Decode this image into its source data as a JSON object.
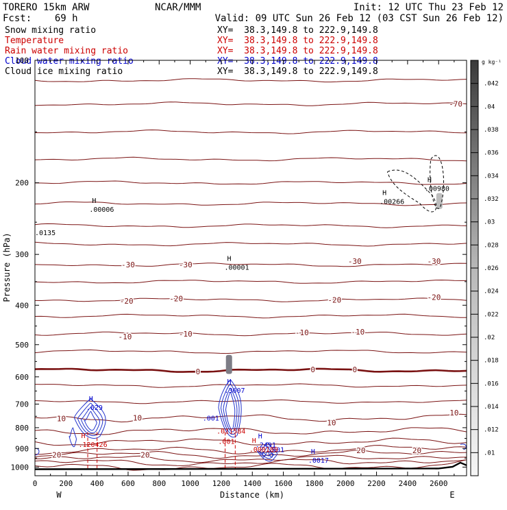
{
  "header": {
    "model": "TORERO  15km ARW",
    "center": "NCAR/MMM",
    "init": "Init: 12 UTC Thu 23 Feb 12",
    "fcst": "Fcst:    69 h",
    "valid": "Valid: 09 UTC Sun 26 Feb 12 (03 CST Sun 26 Feb 12)"
  },
  "fields": [
    {
      "label": "Snow mixing ratio",
      "xy": "XY=  38.3,149.8 to 222.9,149.8",
      "color": "#000000"
    },
    {
      "label": "Temperature",
      "xy": "XY=  38.3,149.8 to 222.9,149.8",
      "color": "#cc0000"
    },
    {
      "label": "Rain water mixing ratio",
      "xy": "XY=  38.3,149.8 to 222.9,149.8",
      "color": "#cc0000"
    },
    {
      "label": "Cloud water mixing ratio",
      "xy": "XY=  38.3,149.8 to 222.9,149.8",
      "color": "#0000cc"
    },
    {
      "label": "Cloud ice mixing ratio",
      "xy": "XY=  38.3,149.8 to 222.9,149.8",
      "color": "#000000"
    }
  ],
  "chart_data": {
    "type": "contour",
    "xlabel": "Distance (km)",
    "ylabel": "Pressure (hPa)",
    "xlim": [
      0,
      2780
    ],
    "ylim": [
      100,
      1050
    ],
    "y_scale": "log-pressure",
    "x_ticks": [
      0,
      200,
      400,
      600,
      800,
      1000,
      1200,
      1400,
      1600,
      1800,
      2000,
      2200,
      2400,
      2600
    ],
    "y_ticks": [
      200,
      300,
      400,
      500,
      600,
      700,
      800,
      900,
      1000
    ],
    "y_tick_label_100": "100",
    "x_end_labels": {
      "left": "W",
      "right": "E"
    },
    "colorbar": {
      "unit": "g kg⁻¹",
      "ticks": [
        ".01",
        ".012",
        ".014",
        ".016",
        ".018",
        ".02",
        ".022",
        ".024",
        ".026",
        ".028",
        ".03",
        ".032",
        ".034",
        ".036",
        ".038",
        ".04",
        ".042"
      ]
    },
    "temperature_labels": [
      {
        "text": "-70",
        "x": 2710,
        "p": 128
      },
      {
        "text": "-30",
        "x": 600,
        "p": 318
      },
      {
        "text": "-30",
        "x": 970,
        "p": 318
      },
      {
        "text": "-30",
        "x": 2060,
        "p": 312
      },
      {
        "text": "-30",
        "x": 2570,
        "p": 312
      },
      {
        "text": "-20",
        "x": 590,
        "p": 390
      },
      {
        "text": "-20",
        "x": 910,
        "p": 385
      },
      {
        "text": "-20",
        "x": 1930,
        "p": 388
      },
      {
        "text": "-20",
        "x": 2570,
        "p": 382
      },
      {
        "text": "-10",
        "x": 580,
        "p": 478
      },
      {
        "text": "-10",
        "x": 970,
        "p": 470
      },
      {
        "text": "-10",
        "x": 1720,
        "p": 467
      },
      {
        "text": "-10",
        "x": 2080,
        "p": 465
      },
      {
        "text": "0",
        "x": 1050,
        "p": 582
      },
      {
        "text": "0",
        "x": 1790,
        "p": 575
      },
      {
        "text": "0",
        "x": 2060,
        "p": 575
      },
      {
        "text": "10",
        "x": 170,
        "p": 760
      },
      {
        "text": "10",
        "x": 660,
        "p": 757
      },
      {
        "text": "10",
        "x": 1910,
        "p": 778
      },
      {
        "text": "10",
        "x": 2700,
        "p": 735
      },
      {
        "text": "20",
        "x": 140,
        "p": 932
      },
      {
        "text": "20",
        "x": 710,
        "p": 932
      },
      {
        "text": "20",
        "x": 2100,
        "p": 910
      },
      {
        "text": "20",
        "x": 2460,
        "p": 910
      }
    ],
    "max_labels": [
      {
        "marker": "H",
        "value": ".00006",
        "x": 350,
        "p": 232,
        "color": "#000000"
      },
      {
        "marker": "H",
        "value": ".00001",
        "x": 1220,
        "p": 322,
        "color": "#000000"
      },
      {
        "marker": "H",
        "value": ".00266",
        "x": 2220,
        "p": 222,
        "color": "#000000"
      },
      {
        "marker": "H",
        "value": ".00980",
        "x": 2510,
        "p": 206,
        "color": "#000000"
      },
      {
        "marker": "",
        "value": ".0135",
        "x": 0,
        "p": 265,
        "color": "#000000"
      },
      {
        "marker": "H",
        "value": ".629",
        "x": 330,
        "p": 712,
        "color": "#0000cc"
      },
      {
        "marker": "H",
        "value": ".3607",
        "x": 1220,
        "p": 647,
        "color": "#0000cc"
      },
      {
        "marker": "",
        "value": ".001",
        "x": 1080,
        "p": 757,
        "color": "#0000cc"
      },
      {
        "marker": "H",
        "value": ".2491",
        "x": 1420,
        "p": 880,
        "color": "#0000cc"
      },
      {
        "marker": "",
        "value": ".001",
        "x": 1500,
        "p": 905,
        "color": "#0000cc"
      },
      {
        "marker": "H",
        "value": ".0017",
        "x": 1760,
        "p": 960,
        "color": "#0000cc"
      },
      {
        "marker": "H",
        "value": ".120426",
        "x": 280,
        "p": 878,
        "color": "#cc0000"
      },
      {
        "marker": "",
        "value": ".011584",
        "x": 1170,
        "p": 815,
        "color": "#cc0000"
      },
      {
        "marker": "",
        "value": ".001",
        "x": 1180,
        "p": 863,
        "color": "#cc0000"
      },
      {
        "marker": "H",
        "value": ".000189",
        "x": 1380,
        "p": 903,
        "color": "#cc0000"
      }
    ]
  }
}
